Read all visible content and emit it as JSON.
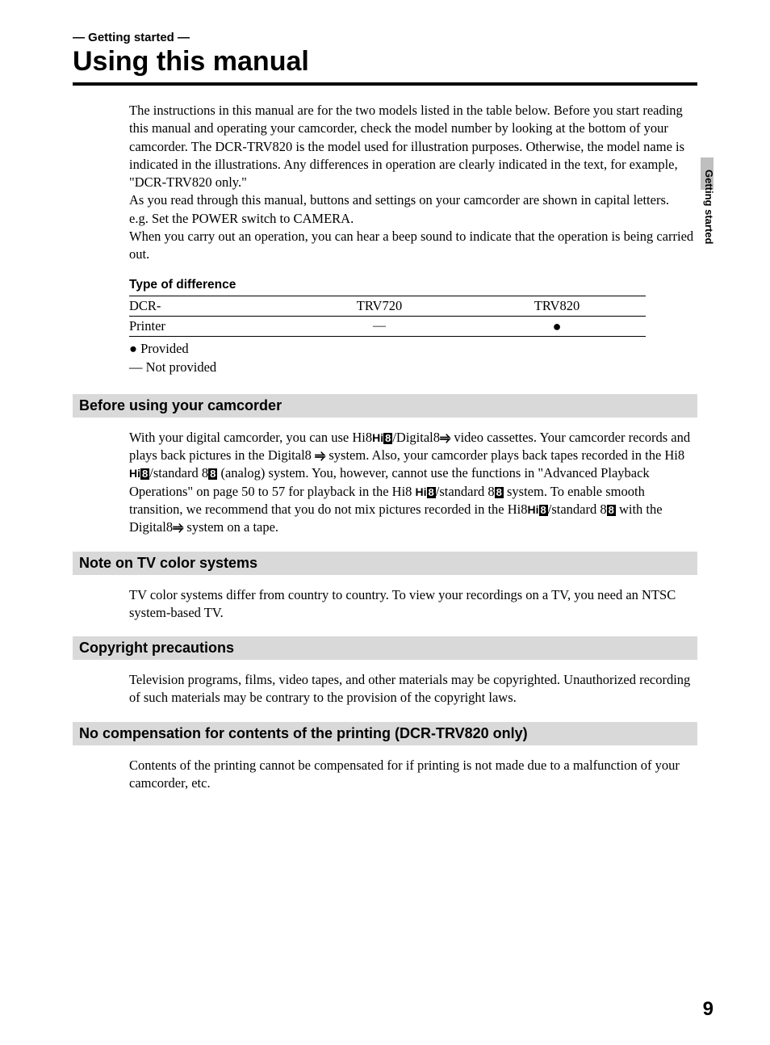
{
  "header": {
    "section_label": "— Getting started —",
    "title": "Using this manual"
  },
  "side": {
    "label": "Getting started"
  },
  "intro": {
    "p1": "The instructions in this manual are for the two models listed in the table below. Before you start reading this manual and operating your camcorder, check the model number by looking at the bottom of your camcorder. The DCR-TRV820 is the model used for illustration purposes. Otherwise, the model name is indicated in the illustrations. Any differences in operation are clearly indicated in the text, for example, \"DCR-TRV820 only.\"",
    "p2": "As you read through this manual, buttons and settings on your camcorder are shown in capital letters.",
    "p3": "e.g. Set the POWER switch to CAMERA.",
    "p4": "When you carry out an operation, you can hear a beep sound to indicate that the operation is being carried out."
  },
  "difference": {
    "heading": "Type of difference",
    "row_header": {
      "label": "DCR-",
      "colA": "TRV720",
      "colB": "TRV820"
    },
    "row_printer": {
      "label": "Printer",
      "colA": "—",
      "colB": "●"
    },
    "legend_provided": "●  Provided",
    "legend_not": "—  Not  provided"
  },
  "sections": {
    "before": {
      "title": "Before using your camcorder",
      "pre1": "With your digital camcorder, you can use Hi8",
      "mid1": "/Digital8",
      "post1": " video cassettes. Your camcorder records and plays back pictures in the Digital8 ",
      "post1b": " system. Also, your camcorder plays back tapes recorded in the Hi8 ",
      "mid2": "/standard 8",
      "post2": " (analog) system. You, however, cannot use the functions in \"Advanced Playback Operations\" on page 50 to 57 for playback in the Hi8 ",
      "mid3": "/standard 8",
      "post3": " system. To enable smooth transition, we recommend that you do not mix pictures recorded in the Hi8",
      "mid4": "/standard 8",
      "post4": " with the Digital8",
      "post4b": " system on a tape."
    },
    "tv": {
      "title": "Note on TV color systems",
      "body": "TV color systems differ from country to country. To view your recordings on a TV, you need an NTSC system-based TV."
    },
    "copyright": {
      "title": "Copyright precautions",
      "body": "Television programs, films, video tapes, and other materials may be copyrighted. Unauthorized recording of such materials may be contrary to the provision of the copyright  laws."
    },
    "nocomp": {
      "title": "No compensation for contents of the printing (DCR-TRV820 only)",
      "body": "Contents of the printing cannot be compensated for if printing is not made due to a malfunction of your camcorder, etc."
    }
  },
  "page_number": "9",
  "colors": {
    "section_bar_bg": "#d9d9d9",
    "side_tab_bg": "#bfbfbf",
    "text": "#000000",
    "bg": "#ffffff"
  }
}
